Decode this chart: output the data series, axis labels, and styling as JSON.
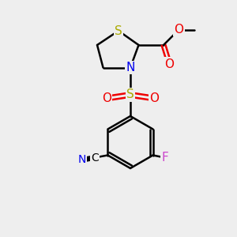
{
  "bg_color": "#eeeeee",
  "bond_color": "#000000",
  "bond_width": 1.8,
  "S_color": "#aaaa00",
  "N_color": "#0000ee",
  "O_color": "#ee0000",
  "F_color": "#cc44cc",
  "C_color": "#000000",
  "sulfonyl_S_color": "#aaaa00",
  "font_size": 11,
  "small_font_size": 9,
  "xlim": [
    0,
    10
  ],
  "ylim": [
    0,
    10
  ]
}
